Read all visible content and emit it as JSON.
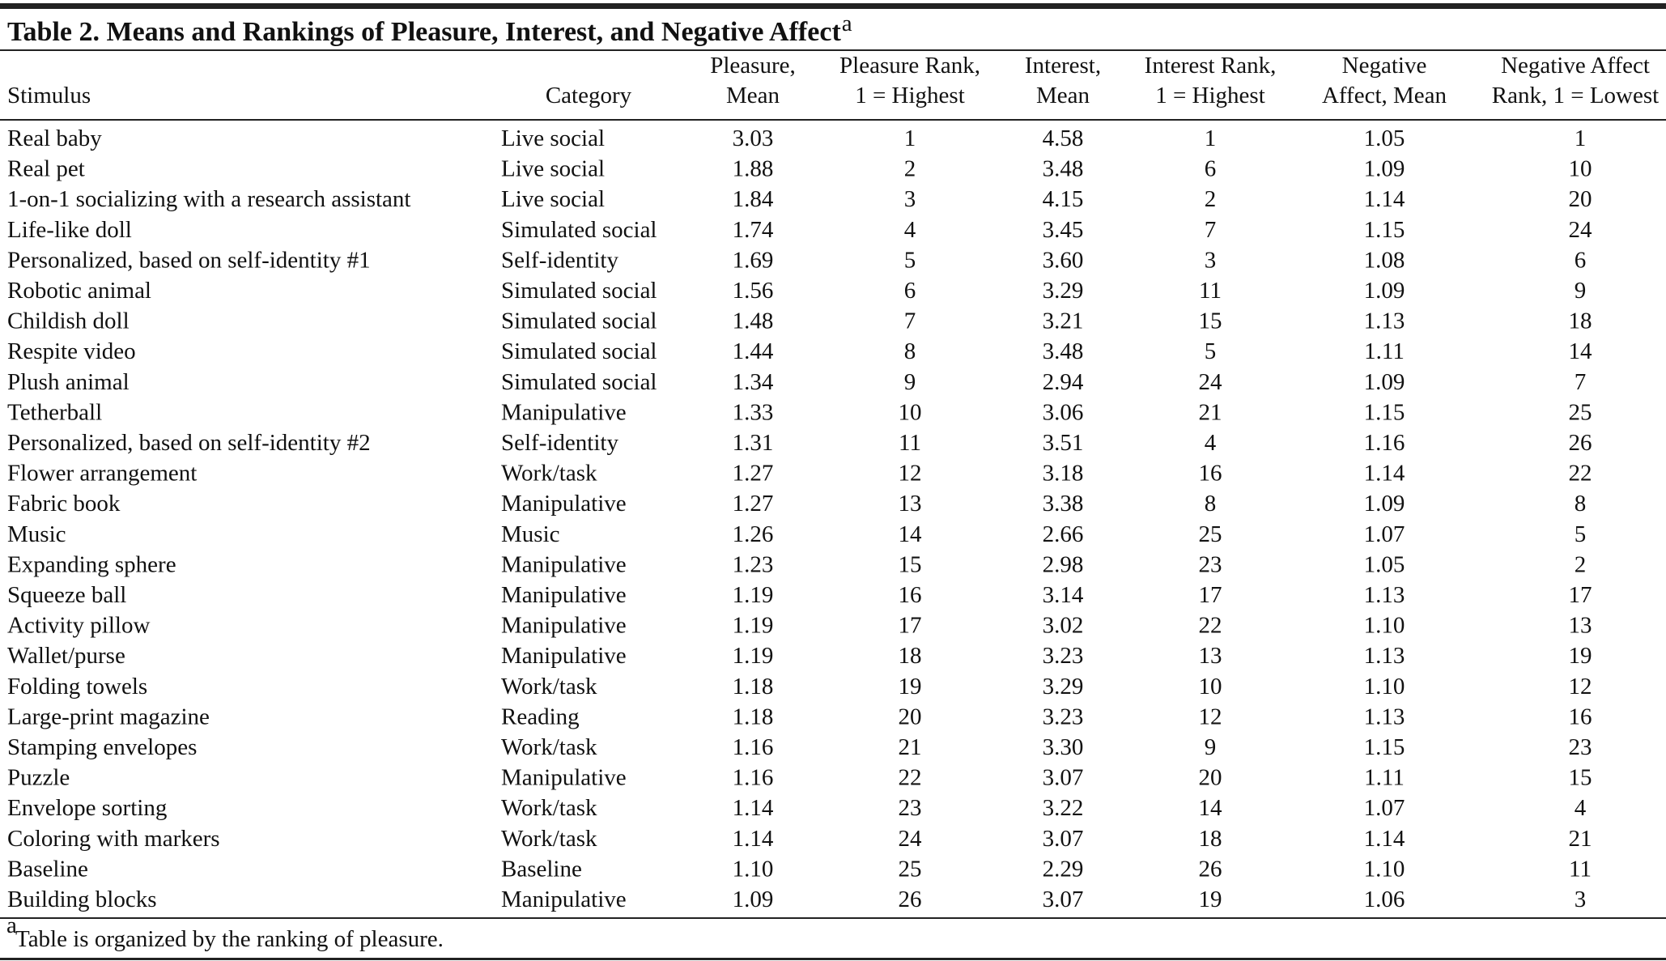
{
  "title": "Table 2. Means and Rankings of Pleasure, Interest, and Negative Affect",
  "title_note": "a",
  "columns": [
    {
      "lines": [
        "Stimulus"
      ]
    },
    {
      "lines": [
        "Category"
      ]
    },
    {
      "lines": [
        "Pleasure,",
        "Mean"
      ]
    },
    {
      "lines": [
        "Pleasure Rank,",
        "1 = Highest"
      ]
    },
    {
      "lines": [
        "Interest,",
        "Mean"
      ]
    },
    {
      "lines": [
        "Interest Rank,",
        "1 = Highest"
      ]
    },
    {
      "lines": [
        "Negative",
        "Affect, Mean"
      ]
    },
    {
      "lines": [
        "Negative Affect",
        "Rank, 1 = Lowest"
      ]
    }
  ],
  "rows": [
    [
      "Real baby",
      "Live social",
      "3.03",
      "1",
      "4.58",
      "1",
      "1.05",
      "1"
    ],
    [
      "Real pet",
      "Live social",
      "1.88",
      "2",
      "3.48",
      "6",
      "1.09",
      "10"
    ],
    [
      "1-on-1 socializing with a research assistant",
      "Live social",
      "1.84",
      "3",
      "4.15",
      "2",
      "1.14",
      "20"
    ],
    [
      "Life-like doll",
      "Simulated social",
      "1.74",
      "4",
      "3.45",
      "7",
      "1.15",
      "24"
    ],
    [
      "Personalized, based on self-identity #1",
      "Self-identity",
      "1.69",
      "5",
      "3.60",
      "3",
      "1.08",
      "6"
    ],
    [
      "Robotic animal",
      "Simulated social",
      "1.56",
      "6",
      "3.29",
      "11",
      "1.09",
      "9"
    ],
    [
      "Childish doll",
      "Simulated social",
      "1.48",
      "7",
      "3.21",
      "15",
      "1.13",
      "18"
    ],
    [
      "Respite video",
      "Simulated social",
      "1.44",
      "8",
      "3.48",
      "5",
      "1.11",
      "14"
    ],
    [
      "Plush animal",
      "Simulated social",
      "1.34",
      "9",
      "2.94",
      "24",
      "1.09",
      "7"
    ],
    [
      "Tetherball",
      "Manipulative",
      "1.33",
      "10",
      "3.06",
      "21",
      "1.15",
      "25"
    ],
    [
      "Personalized, based on self-identity #2",
      "Self-identity",
      "1.31",
      "11",
      "3.51",
      "4",
      "1.16",
      "26"
    ],
    [
      "Flower arrangement",
      "Work/task",
      "1.27",
      "12",
      "3.18",
      "16",
      "1.14",
      "22"
    ],
    [
      "Fabric book",
      "Manipulative",
      "1.27",
      "13",
      "3.38",
      "8",
      "1.09",
      "8"
    ],
    [
      "Music",
      "Music",
      "1.26",
      "14",
      "2.66",
      "25",
      "1.07",
      "5"
    ],
    [
      "Expanding sphere",
      "Manipulative",
      "1.23",
      "15",
      "2.98",
      "23",
      "1.05",
      "2"
    ],
    [
      "Squeeze ball",
      "Manipulative",
      "1.19",
      "16",
      "3.14",
      "17",
      "1.13",
      "17"
    ],
    [
      "Activity pillow",
      "Manipulative",
      "1.19",
      "17",
      "3.02",
      "22",
      "1.10",
      "13"
    ],
    [
      "Wallet/purse",
      "Manipulative",
      "1.19",
      "18",
      "3.23",
      "13",
      "1.13",
      "19"
    ],
    [
      "Folding towels",
      "Work/task",
      "1.18",
      "19",
      "3.29",
      "10",
      "1.10",
      "12"
    ],
    [
      "Large-print magazine",
      "Reading",
      "1.18",
      "20",
      "3.23",
      "12",
      "1.13",
      "16"
    ],
    [
      "Stamping envelopes",
      "Work/task",
      "1.16",
      "21",
      "3.30",
      "9",
      "1.15",
      "23"
    ],
    [
      "Puzzle",
      "Manipulative",
      "1.16",
      "22",
      "3.07",
      "20",
      "1.11",
      "15"
    ],
    [
      "Envelope sorting",
      "Work/task",
      "1.14",
      "23",
      "3.22",
      "14",
      "1.07",
      "4"
    ],
    [
      "Coloring with markers",
      "Work/task",
      "1.14",
      "24",
      "3.07",
      "18",
      "1.14",
      "21"
    ],
    [
      "Baseline",
      "Baseline",
      "1.10",
      "25",
      "2.29",
      "26",
      "1.10",
      "11"
    ],
    [
      "Building blocks",
      "Manipulative",
      "1.09",
      "26",
      "3.07",
      "19",
      "1.06",
      "3"
    ]
  ],
  "footnote": {
    "mark": "a",
    "text": "Table is organized by the ranking of pleasure."
  }
}
